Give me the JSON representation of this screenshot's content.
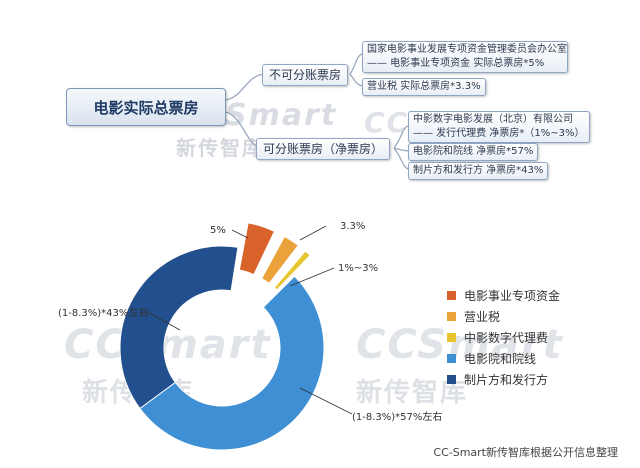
{
  "diagram": {
    "root": "电影实际总票房",
    "branch_a": {
      "label": "不可分账票房",
      "item1_line1": "国家电影事业发展专项资金管理委员会办公室",
      "item1_line2": "—— 电影事业专项资金     实际总票房*5%",
      "item2": "营业税    实际总票房*3.3%"
    },
    "branch_b": {
      "label": "可分账票房（净票房）",
      "item1_line1": "中影数字电影发展（北京）有限公司",
      "item1_line2": "—— 发行代理费     净票房*（1%~3%）",
      "item2": "电影院和院线    净票房*57%",
      "item3": "制片方和发行方    净票房*43%"
    }
  },
  "watermark": {
    "brand": "CCSmart",
    "sub": "新传智库"
  },
  "chart_data": {
    "type": "pie",
    "donut": true,
    "series": [
      {
        "name": "电影事业专项资金",
        "label": "5%",
        "value": 5,
        "color": "#d9622b",
        "exploded": true
      },
      {
        "name": "营业税",
        "label": "3.3%",
        "value": 3.3,
        "color": "#eba23a",
        "exploded": true
      },
      {
        "name": "中影数字代理费",
        "label": "1%~3%",
        "value": 1.8,
        "color": "#e7c52e",
        "exploded": true
      },
      {
        "name": "电影院和院线",
        "label": "(1-8.3%)*57%左右",
        "value": 52.3,
        "color": "#3f8fd4",
        "exploded": false
      },
      {
        "name": "制片方和发行方",
        "label": "(1-8.3%)*43%左右",
        "value": 37.6,
        "color": "#224f8d",
        "exploded": false
      }
    ],
    "legend_position": "right"
  },
  "footer": "CC-Smart新传智库根据公开信息整理"
}
